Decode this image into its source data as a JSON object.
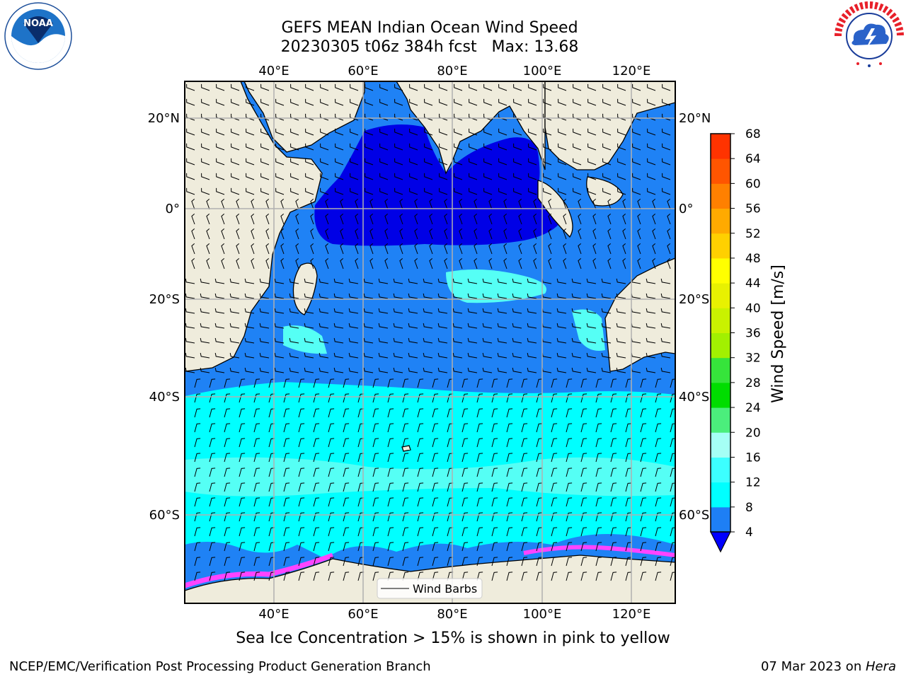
{
  "title_line1": "GEFS MEAN Indian Ocean Wind Speed",
  "title_line2": "20230305 t06z 384h fcst   Max: 13.68",
  "caption": "Sea Ice Concentration > 15% is shown in pink to yellow",
  "footer_left": "NCEP/EMC/Verification Post Processing Product Generation Branch",
  "footer_date": "07 Mar 2023 on ",
  "footer_machine": "Hera",
  "legend_label": "Wind Barbs",
  "colorbar": {
    "label": "Wind Speed [m/s]",
    "ticks": [
      "4",
      "8",
      "12",
      "16",
      "20",
      "24",
      "28",
      "32",
      "36",
      "40",
      "44",
      "48",
      "52",
      "56",
      "60",
      "64",
      "68"
    ],
    "colors": [
      "#1e7ff5",
      "#00ffff",
      "#3cffff",
      "#7dfcf8",
      "#a5fff5",
      "#4bee7c",
      "#36e43b",
      "#00dd00",
      "#6ae71a",
      "#a2f001",
      "#c9f200",
      "#e8f101",
      "#ffff00",
      "#ffd000",
      "#ffaa00",
      "#ff8000",
      "#ff5500",
      "#ff3300",
      "#ff0000"
    ]
  },
  "map": {
    "lon_labels": [
      "40°E",
      "60°E",
      "80°E",
      "100°E",
      "120°E"
    ],
    "lat_labels": [
      "20°N",
      "0°",
      "20°S",
      "40°S",
      "60°S"
    ],
    "extent": {
      "lon": [
        20,
        130
      ],
      "lat": [
        -75,
        28
      ]
    },
    "colors": {
      "land": "#efecdc",
      "speed_4_8": "#1f82f5",
      "speed_under_4": "#0000e6",
      "speed_8_12": "#00ffff",
      "speed_12_16": "#55fff5",
      "ice": "#ff44ff"
    }
  },
  "logos": {
    "noaa": {
      "text": "NOAA",
      "ring": "NATIONAL OCEANIC AND ATMOSPHERIC ADMINISTRATION · U.S. DEPARTMENT OF COMMERCE"
    },
    "nws": {
      "ring": "NATIONAL WEATHER SERVICE"
    }
  }
}
